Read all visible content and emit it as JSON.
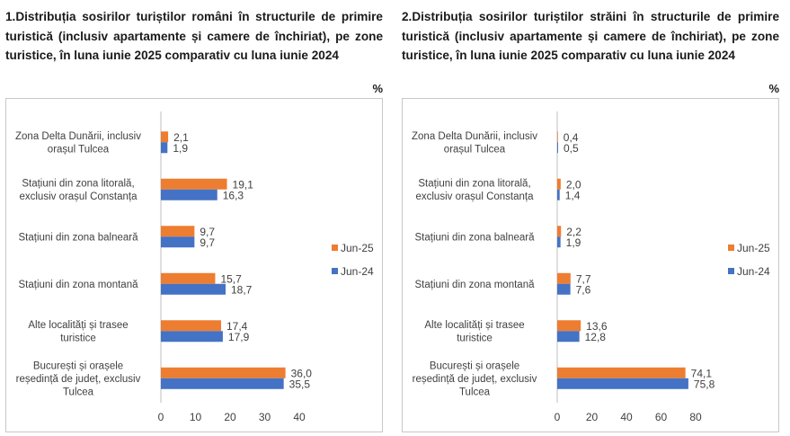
{
  "colors": {
    "jun25": "#ED7D31",
    "jun24": "#4472C4"
  },
  "chart_data": [
    {
      "type": "bar",
      "orientation": "horizontal",
      "title": "1.Distribuția sosirilor turiștilor români în structurile de primire turistică (inclusiv apartamente și camere de închiriat), pe zone turistice, în luna iunie 2025 comparativ cu luna iunie 2024",
      "unit": "%",
      "categories": [
        "Zona Delta Dunării, inclusiv orașul Tulcea",
        "Stațiuni din zona litorală, exclusiv orașul Constanța",
        "Stațiuni din zona balneară",
        "Stațiuni din zona montană",
        "Alte localități și trasee turistice",
        "București și orașele reședință de județ, exclusiv Tulcea"
      ],
      "series": [
        {
          "name": "Jun-25",
          "values": [
            2.1,
            19.1,
            9.7,
            15.7,
            17.4,
            36.0
          ],
          "labels": [
            "2,1",
            "19,1",
            "9,7",
            "15,7",
            "17,4",
            "36,0"
          ]
        },
        {
          "name": "Jun-24",
          "values": [
            1.9,
            16.3,
            9.7,
            18.7,
            17.9,
            35.5
          ],
          "labels": [
            "1,9",
            "16,3",
            "9,7",
            "18,7",
            "17,9",
            "35,5"
          ]
        }
      ],
      "xlim": [
        0,
        40
      ],
      "xticks": [
        "0",
        "10",
        "20",
        "30",
        "40"
      ],
      "grid": false,
      "legend": "right"
    },
    {
      "type": "bar",
      "orientation": "horizontal",
      "title": "2.Distribuția sosirilor turiștilor străini în structurile de primire turistică (inclusiv apartamente și camere de închiriat), pe zone turistice, în luna iunie 2025 comparativ cu luna iunie 2024",
      "unit": "%",
      "categories": [
        "Zona Delta Dunării, inclusiv orașul Tulcea",
        "Stațiuni din zona litorală, exclusiv orașul Constanța",
        "Stațiuni din zona balneară",
        "Stațiuni din zona montană",
        "Alte localități și trasee turistice",
        "București și orașele reședință de județ, exclusiv Tulcea"
      ],
      "series": [
        {
          "name": "Jun-25",
          "values": [
            0.4,
            2.0,
            2.2,
            7.7,
            13.6,
            74.1
          ],
          "labels": [
            "0,4",
            "2,0",
            "2,2",
            "7,7",
            "13,6",
            "74,1"
          ]
        },
        {
          "name": "Jun-24",
          "values": [
            0.5,
            1.4,
            1.9,
            7.6,
            12.8,
            75.8
          ],
          "labels": [
            "0,5",
            "1,4",
            "1,9",
            "7,6",
            "12,8",
            "75,8"
          ]
        }
      ],
      "xlim": [
        0,
        80
      ],
      "xticks": [
        "0",
        "20",
        "40",
        "60",
        "80"
      ],
      "grid": false,
      "legend": "right"
    }
  ]
}
